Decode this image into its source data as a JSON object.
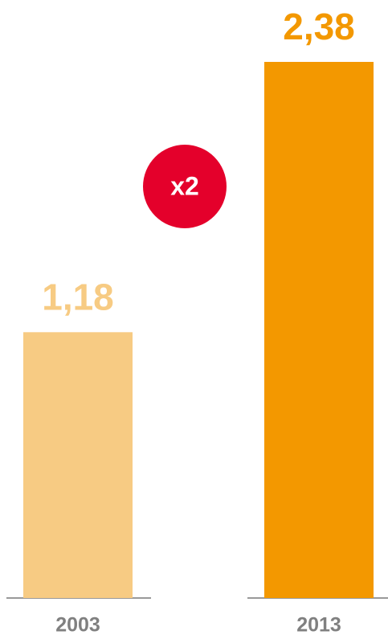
{
  "chart_data": {
    "type": "bar",
    "categories": [
      "2003",
      "2013"
    ],
    "values": [
      1.18,
      2.38
    ],
    "value_labels": [
      "1,18",
      "2,38"
    ],
    "colors": [
      "#f7cb83",
      "#f39800"
    ],
    "annotation": {
      "text": "x2",
      "color": "#e4002b"
    }
  }
}
